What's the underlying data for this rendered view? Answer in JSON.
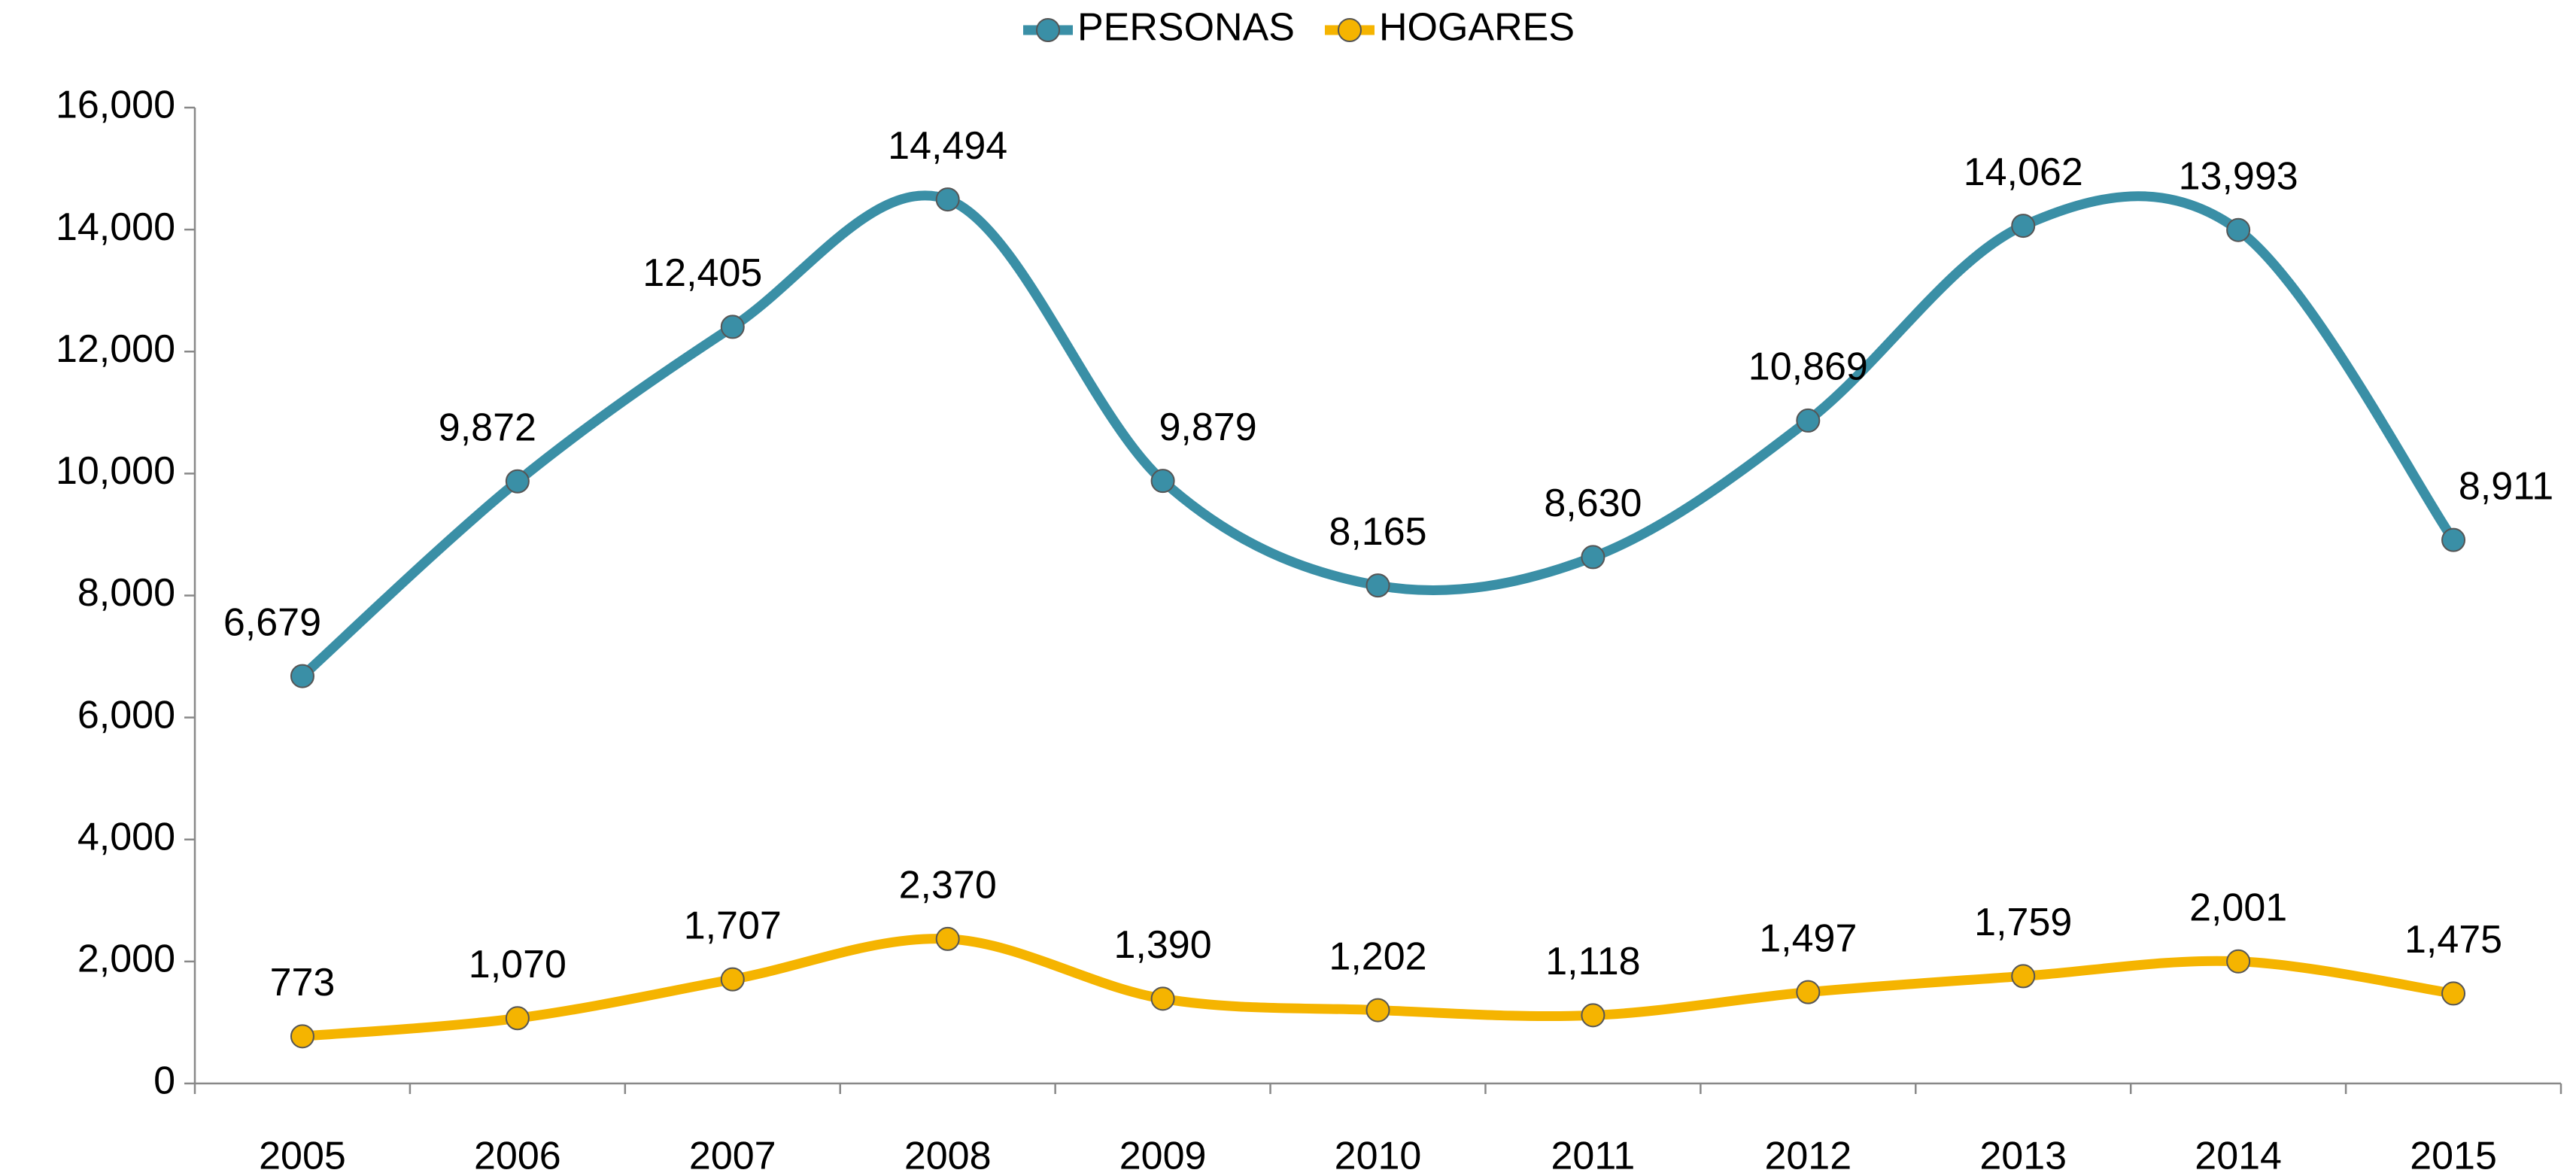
{
  "chart_data": {
    "type": "line",
    "categories": [
      "2005",
      "2006",
      "2007",
      "2008",
      "2009",
      "2010",
      "2011",
      "2012",
      "2013",
      "2014",
      "2015"
    ],
    "series": [
      {
        "name": "PERSONAS",
        "color": "#3a8fa6",
        "values": [
          6679,
          9872,
          12405,
          14494,
          9879,
          8165,
          8630,
          10869,
          14062,
          13993,
          8911
        ],
        "value_labels": [
          "6,679",
          "9,872",
          "12,405",
          "14,494",
          "9,879",
          "8,165",
          "8,630",
          "10,869",
          "14,062",
          "13,993",
          "8,911"
        ]
      },
      {
        "name": "HOGARES",
        "color": "#f5b400",
        "values": [
          773,
          1070,
          1707,
          2370,
          1390,
          1202,
          1118,
          1497,
          1759,
          2001,
          1475
        ],
        "value_labels": [
          "773",
          "1,070",
          "1,707",
          "2,370",
          "1,390",
          "1,202",
          "1,118",
          "1,497",
          "1,759",
          "2,001",
          "1,475"
        ]
      }
    ],
    "ylim": [
      0,
      16000
    ],
    "yticks": [
      0,
      {
        "value": 2000,
        "label": "2,000"
      },
      {
        "value": 4000,
        "label": "4,000"
      },
      {
        "value": 6000,
        "label": "6,000"
      },
      {
        "value": 8000,
        "label": "8,000"
      },
      {
        "value": 10000,
        "label": "10,000"
      },
      {
        "value": 12000,
        "label": "12,000"
      },
      {
        "value": 14000,
        "label": "14,000"
      },
      {
        "value": 16000,
        "label": "16,000"
      }
    ],
    "legend": "top",
    "smooth": true
  }
}
